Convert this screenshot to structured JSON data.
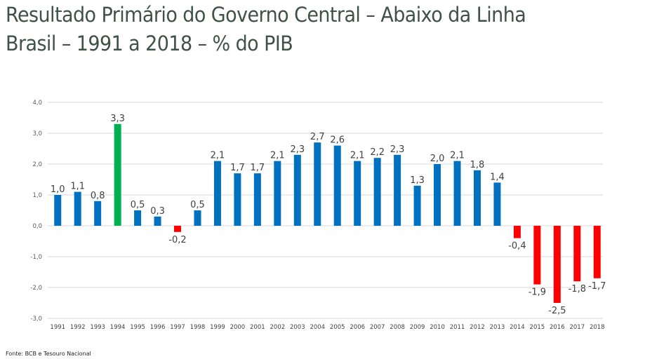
{
  "title_line1": "Resultado Primário do Governo Central – Abaixo da Linha",
  "title_line2": "Brasil – 1991 a 2018 – % do PIB",
  "source": "Fonte: BCB e Tesouro Nacional",
  "colors": {
    "positive": "#0070c0",
    "highlight": "#00b050",
    "negative": "#ff0000",
    "grid": "#d9d9d9",
    "title": "#3f5248"
  },
  "chart_data": {
    "type": "bar",
    "title": "Resultado Primário do Governo Central – Abaixo da Linha — Brasil – 1991 a 2018 – % do PIB",
    "xlabel": "",
    "ylabel": "% do PIB",
    "ylim": [
      -3.0,
      4.0
    ],
    "yticks": [
      4.0,
      3.0,
      2.0,
      1.0,
      0.0,
      -1.0,
      -2.0,
      -3.0
    ],
    "ytick_labels": [
      "4,0",
      "3,0",
      "2,0",
      "1,0",
      "0,0",
      "-1,0",
      "-2,0",
      "-3,0"
    ],
    "grid": true,
    "legend": "none",
    "categories": [
      "1991",
      "1992",
      "1993",
      "1994",
      "1995",
      "1996",
      "1997",
      "1998",
      "1999",
      "2000",
      "2001",
      "2002",
      "2003",
      "2004",
      "2005",
      "2006",
      "2007",
      "2008",
      "2009",
      "2010",
      "2011",
      "2012",
      "2013",
      "2014",
      "2015",
      "2016",
      "2017",
      "2018"
    ],
    "values": [
      1.0,
      1.1,
      0.8,
      3.3,
      0.5,
      0.3,
      -0.2,
      0.5,
      2.1,
      1.7,
      1.7,
      2.1,
      2.3,
      2.7,
      2.6,
      2.1,
      2.2,
      2.3,
      1.3,
      2.0,
      2.1,
      1.8,
      1.4,
      -0.4,
      -1.9,
      -2.5,
      -1.8,
      -1.7
    ],
    "data_labels": [
      "1,0",
      "1,1",
      "0,8",
      "3,3",
      "0,5",
      "0,3",
      "-0,2",
      "0,5",
      "2,1",
      "1,7",
      "1,7",
      "2,1",
      "2,3",
      "2,7",
      "2,6",
      "2,1",
      "2,2",
      "2,3",
      "1,3",
      "2,0",
      "2,1",
      "1,8",
      "1,4",
      "-0,4",
      "-1,9",
      "-2,5",
      "-1,8",
      "-1,7"
    ],
    "bar_color_keys": [
      "positive",
      "positive",
      "positive",
      "highlight",
      "positive",
      "positive",
      "negative",
      "positive",
      "positive",
      "positive",
      "positive",
      "positive",
      "positive",
      "positive",
      "positive",
      "positive",
      "positive",
      "positive",
      "positive",
      "positive",
      "positive",
      "positive",
      "positive",
      "negative",
      "negative",
      "negative",
      "negative",
      "negative"
    ]
  }
}
